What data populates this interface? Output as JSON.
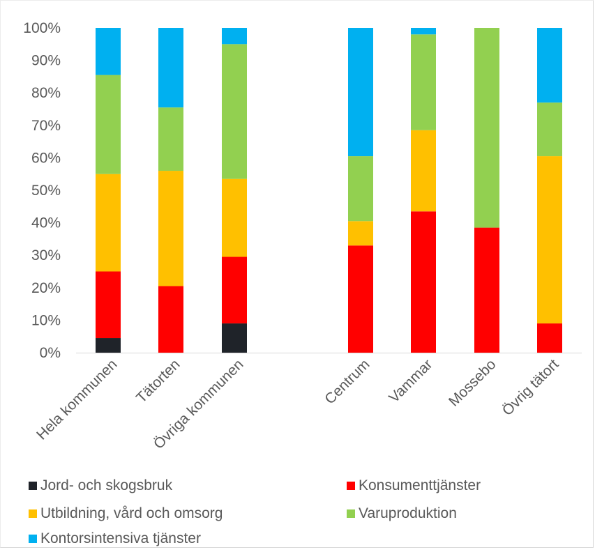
{
  "chart_data": {
    "type": "bar",
    "stacked": true,
    "percent_stacked": true,
    "categories": [
      "Hela kommunen",
      "Tätorten",
      "Övriga kommunen",
      "Centrum",
      "Vammar",
      "Mossebo",
      "Övrig tätort"
    ],
    "ylim": [
      0,
      100
    ],
    "yticks": [
      "0%",
      "10%",
      "20%",
      "30%",
      "40%",
      "50%",
      "60%",
      "70%",
      "80%",
      "90%",
      "100%"
    ],
    "grid": false,
    "legend_position": "bottom",
    "series": [
      {
        "name": "Jord- och skogsbruk",
        "color": "#1f2329",
        "values": [
          4.5,
          0,
          9,
          0,
          0,
          0,
          0
        ]
      },
      {
        "name": "Konsumenttjänster",
        "color": "#ff0000",
        "values": [
          20.5,
          20.5,
          20.5,
          33,
          43.5,
          38.5,
          9
        ]
      },
      {
        "name": "Utbildning, vård och omsorg",
        "color": "#ffc000",
        "values": [
          30,
          35.5,
          24,
          7.5,
          25,
          0,
          51.5
        ]
      },
      {
        "name": "Varuproduktion",
        "color": "#92d050",
        "values": [
          30.5,
          19.5,
          41.5,
          20,
          29.5,
          61.5,
          16.5
        ]
      },
      {
        "name": "Kontorsintensiva tjänster",
        "color": "#00b0f0",
        "values": [
          14.5,
          24.5,
          5,
          39.5,
          2,
          0,
          23
        ]
      }
    ]
  }
}
